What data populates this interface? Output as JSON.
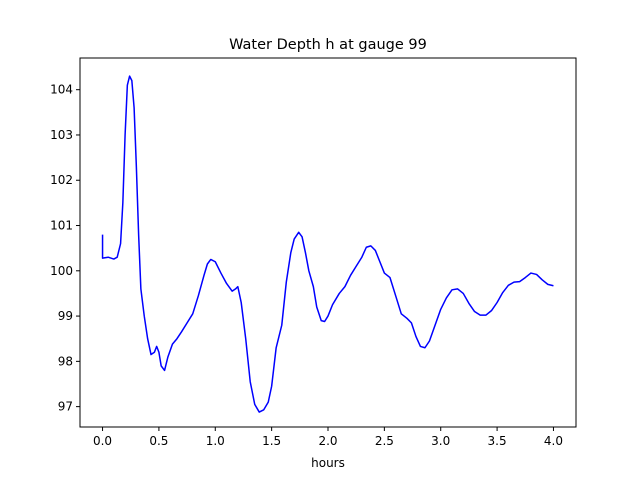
{
  "chart_data": {
    "type": "line",
    "title": "Water Depth h at gauge 99",
    "xlabel": "hours",
    "ylabel": "",
    "xlim": [
      -0.2,
      4.2
    ],
    "ylim": [
      96.55,
      104.7
    ],
    "xticks": [
      0.0,
      0.5,
      1.0,
      1.5,
      2.0,
      2.5,
      3.0,
      3.5,
      4.0
    ],
    "xtick_labels": [
      "0.0",
      "0.5",
      "1.0",
      "1.5",
      "2.0",
      "2.5",
      "3.0",
      "3.5",
      "4.0"
    ],
    "yticks": [
      97,
      98,
      99,
      100,
      101,
      102,
      103,
      104
    ],
    "ytick_labels": [
      "97",
      "98",
      "99",
      "100",
      "101",
      "102",
      "103",
      "104"
    ],
    "grid": false,
    "series": [
      {
        "name": "",
        "color": "#0000ff",
        "points": [
          [
            0.0,
            100.8
          ],
          [
            0.0,
            100.28
          ],
          [
            0.05,
            100.3
          ],
          [
            0.1,
            100.26
          ],
          [
            0.13,
            100.3
          ],
          [
            0.16,
            100.6
          ],
          [
            0.18,
            101.5
          ],
          [
            0.2,
            103.0
          ],
          [
            0.22,
            104.1
          ],
          [
            0.24,
            104.3
          ],
          [
            0.26,
            104.2
          ],
          [
            0.28,
            103.6
          ],
          [
            0.3,
            102.3
          ],
          [
            0.32,
            100.8
          ],
          [
            0.34,
            99.6
          ],
          [
            0.37,
            99.0
          ],
          [
            0.4,
            98.5
          ],
          [
            0.43,
            98.15
          ],
          [
            0.46,
            98.2
          ],
          [
            0.48,
            98.33
          ],
          [
            0.5,
            98.2
          ],
          [
            0.52,
            97.9
          ],
          [
            0.55,
            97.8
          ],
          [
            0.58,
            98.1
          ],
          [
            0.62,
            98.38
          ],
          [
            0.66,
            98.5
          ],
          [
            0.7,
            98.65
          ],
          [
            0.75,
            98.85
          ],
          [
            0.8,
            99.05
          ],
          [
            0.85,
            99.45
          ],
          [
            0.9,
            99.9
          ],
          [
            0.93,
            100.15
          ],
          [
            0.96,
            100.25
          ],
          [
            1.0,
            100.2
          ],
          [
            1.05,
            99.95
          ],
          [
            1.1,
            99.72
          ],
          [
            1.15,
            99.55
          ],
          [
            1.18,
            99.6
          ],
          [
            1.2,
            99.65
          ],
          [
            1.23,
            99.3
          ],
          [
            1.27,
            98.5
          ],
          [
            1.31,
            97.55
          ],
          [
            1.35,
            97.05
          ],
          [
            1.39,
            96.88
          ],
          [
            1.43,
            96.93
          ],
          [
            1.47,
            97.1
          ],
          [
            1.5,
            97.45
          ],
          [
            1.54,
            98.3
          ],
          [
            1.59,
            98.8
          ],
          [
            1.63,
            99.75
          ],
          [
            1.67,
            100.4
          ],
          [
            1.7,
            100.7
          ],
          [
            1.74,
            100.85
          ],
          [
            1.77,
            100.75
          ],
          [
            1.8,
            100.4
          ],
          [
            1.83,
            100.0
          ],
          [
            1.87,
            99.65
          ],
          [
            1.9,
            99.2
          ],
          [
            1.94,
            98.9
          ],
          [
            1.97,
            98.88
          ],
          [
            2.0,
            99.0
          ],
          [
            2.04,
            99.25
          ],
          [
            2.1,
            99.5
          ],
          [
            2.15,
            99.65
          ],
          [
            2.2,
            99.9
          ],
          [
            2.25,
            100.1
          ],
          [
            2.3,
            100.3
          ],
          [
            2.34,
            100.52
          ],
          [
            2.38,
            100.55
          ],
          [
            2.42,
            100.45
          ],
          [
            2.46,
            100.2
          ],
          [
            2.5,
            99.95
          ],
          [
            2.55,
            99.85
          ],
          [
            2.6,
            99.45
          ],
          [
            2.65,
            99.05
          ],
          [
            2.7,
            98.95
          ],
          [
            2.74,
            98.85
          ],
          [
            2.78,
            98.55
          ],
          [
            2.82,
            98.33
          ],
          [
            2.86,
            98.3
          ],
          [
            2.9,
            98.45
          ],
          [
            2.95,
            98.8
          ],
          [
            3.0,
            99.15
          ],
          [
            3.05,
            99.4
          ],
          [
            3.1,
            99.58
          ],
          [
            3.15,
            99.6
          ],
          [
            3.2,
            99.5
          ],
          [
            3.25,
            99.28
          ],
          [
            3.3,
            99.1
          ],
          [
            3.35,
            99.02
          ],
          [
            3.4,
            99.02
          ],
          [
            3.45,
            99.12
          ],
          [
            3.5,
            99.3
          ],
          [
            3.55,
            99.52
          ],
          [
            3.6,
            99.68
          ],
          [
            3.65,
            99.75
          ],
          [
            3.7,
            99.76
          ],
          [
            3.75,
            99.85
          ],
          [
            3.8,
            99.95
          ],
          [
            3.85,
            99.92
          ],
          [
            3.9,
            99.8
          ],
          [
            3.95,
            99.7
          ],
          [
            4.0,
            99.67
          ]
        ]
      }
    ]
  }
}
